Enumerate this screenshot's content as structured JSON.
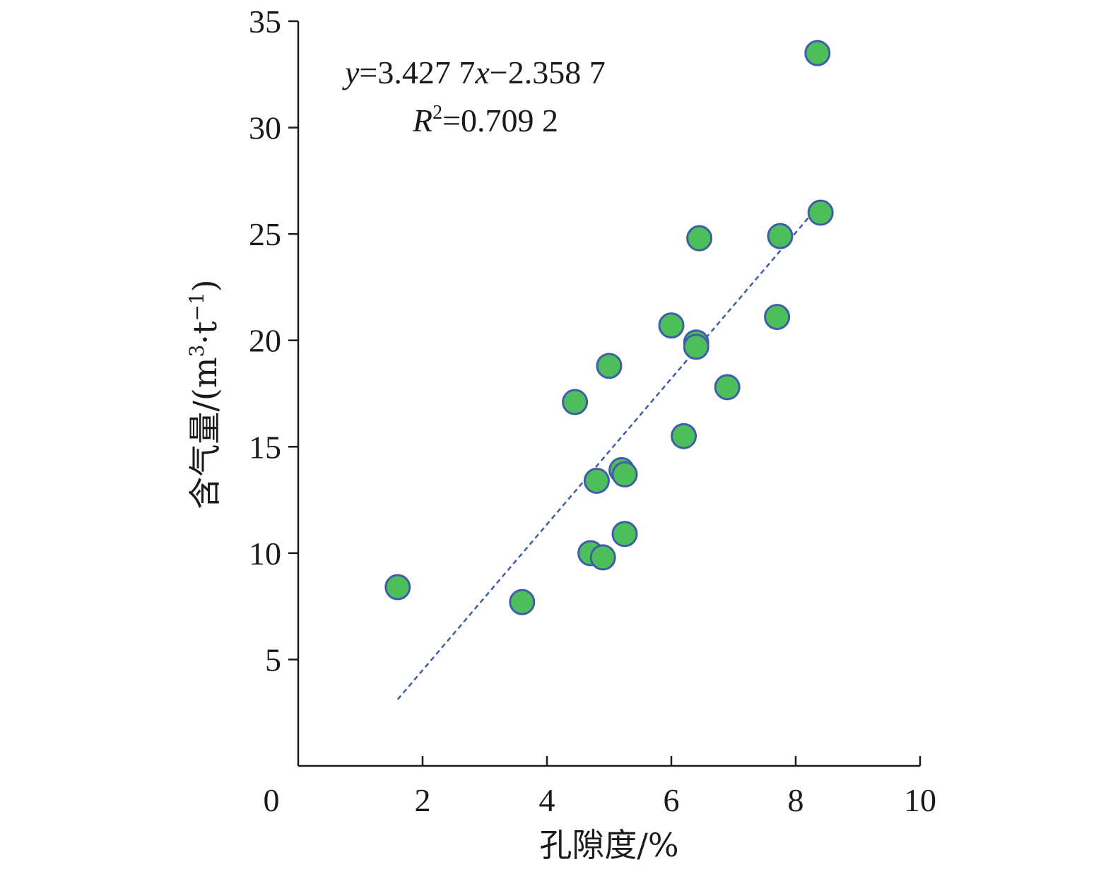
{
  "chart_data": {
    "type": "scatter",
    "title": "",
    "xlabel": "孔隙度/%",
    "ylabel": "含气量/(m³·t⁻¹)",
    "xlim": [
      0,
      10
    ],
    "ylim": [
      0,
      35
    ],
    "x_ticks": [
      0,
      2,
      4,
      6,
      8,
      10
    ],
    "y_ticks": [
      5,
      10,
      15,
      20,
      25,
      30,
      35
    ],
    "x_tick_labels": [
      "0",
      "2",
      "4",
      "6",
      "8",
      "10"
    ],
    "y_tick_labels": [
      "5",
      "10",
      "15",
      "20",
      "25",
      "30",
      "35"
    ],
    "grid": false,
    "legend": "none",
    "colors": {
      "marker_fill": "#4cbf5a",
      "marker_stroke": "#3f5ea8",
      "trendline": "#3f5ea8",
      "axis": "#1a1a1a"
    },
    "series": [
      {
        "points": [
          {
            "x": 1.6,
            "y": 8.4
          },
          {
            "x": 3.6,
            "y": 7.7
          },
          {
            "x": 4.45,
            "y": 17.1
          },
          {
            "x": 4.7,
            "y": 10.0
          },
          {
            "x": 4.8,
            "y": 13.4
          },
          {
            "x": 4.9,
            "y": 9.8
          },
          {
            "x": 5.0,
            "y": 18.8
          },
          {
            "x": 5.2,
            "y": 13.9
          },
          {
            "x": 5.25,
            "y": 13.7
          },
          {
            "x": 5.25,
            "y": 10.9
          },
          {
            "x": 6.0,
            "y": 20.7
          },
          {
            "x": 6.2,
            "y": 15.5
          },
          {
            "x": 6.4,
            "y": 19.9
          },
          {
            "x": 6.4,
            "y": 19.7
          },
          {
            "x": 6.45,
            "y": 24.8
          },
          {
            "x": 6.9,
            "y": 17.8
          },
          {
            "x": 7.7,
            "y": 21.1
          },
          {
            "x": 7.75,
            "y": 24.9
          },
          {
            "x": 8.35,
            "y": 33.5
          },
          {
            "x": 8.4,
            "y": 26.0
          }
        ]
      }
    ],
    "trendline": {
      "type": "linear",
      "slope": 3.4277,
      "intercept": -2.3587,
      "x_range": [
        1.6,
        8.4
      ],
      "style": "dashed"
    },
    "annotations": {
      "equation_y": "y",
      "equation_mid": "=3.427 7",
      "equation_x": "x",
      "equation_tail": "−2.358 7",
      "r2_symbol": "R",
      "r2_sup": "2",
      "r2_value": "=0.709 2"
    },
    "ylabel_parts": {
      "text": "含气量/(m",
      "sup1": "3",
      "middle": "·t",
      "sup2": "−1",
      "close": ")"
    }
  }
}
